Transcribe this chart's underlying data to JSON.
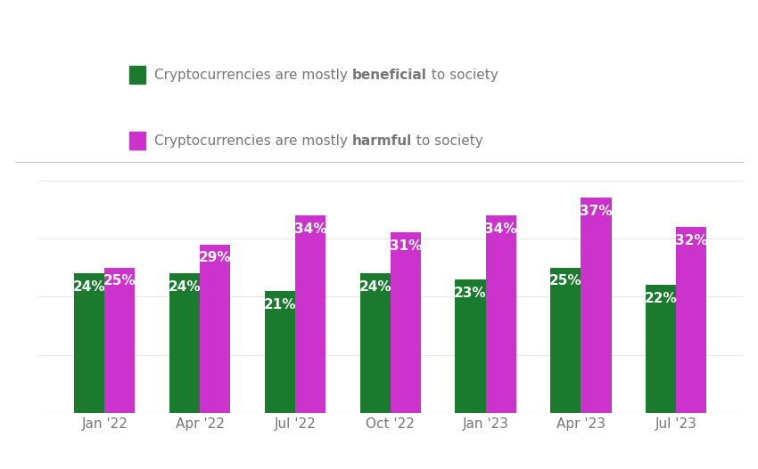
{
  "categories": [
    "Jan '22",
    "Apr '22",
    "Jul '22",
    "Oct '22",
    "Jan '23",
    "Apr '23",
    "Jul '23"
  ],
  "beneficial": [
    24,
    24,
    21,
    24,
    23,
    25,
    22
  ],
  "harmful": [
    25,
    29,
    34,
    31,
    34,
    37,
    32
  ],
  "beneficial_color": "#1a7a2e",
  "harmful_color": "#cc33cc",
  "bar_label_color": "#ffffff",
  "background_color": "#ffffff",
  "bar_width": 0.32,
  "figsize": [
    8.5,
    5.27
  ],
  "dpi": 100,
  "ylim": [
    0,
    42
  ],
  "xlabel_fontsize": 11,
  "bar_label_fontsize": 11,
  "tick_label_color": "#777777",
  "axis_line_color": "#cccccc",
  "legend_text_color": "#777777",
  "legend_fontsize": 11
}
